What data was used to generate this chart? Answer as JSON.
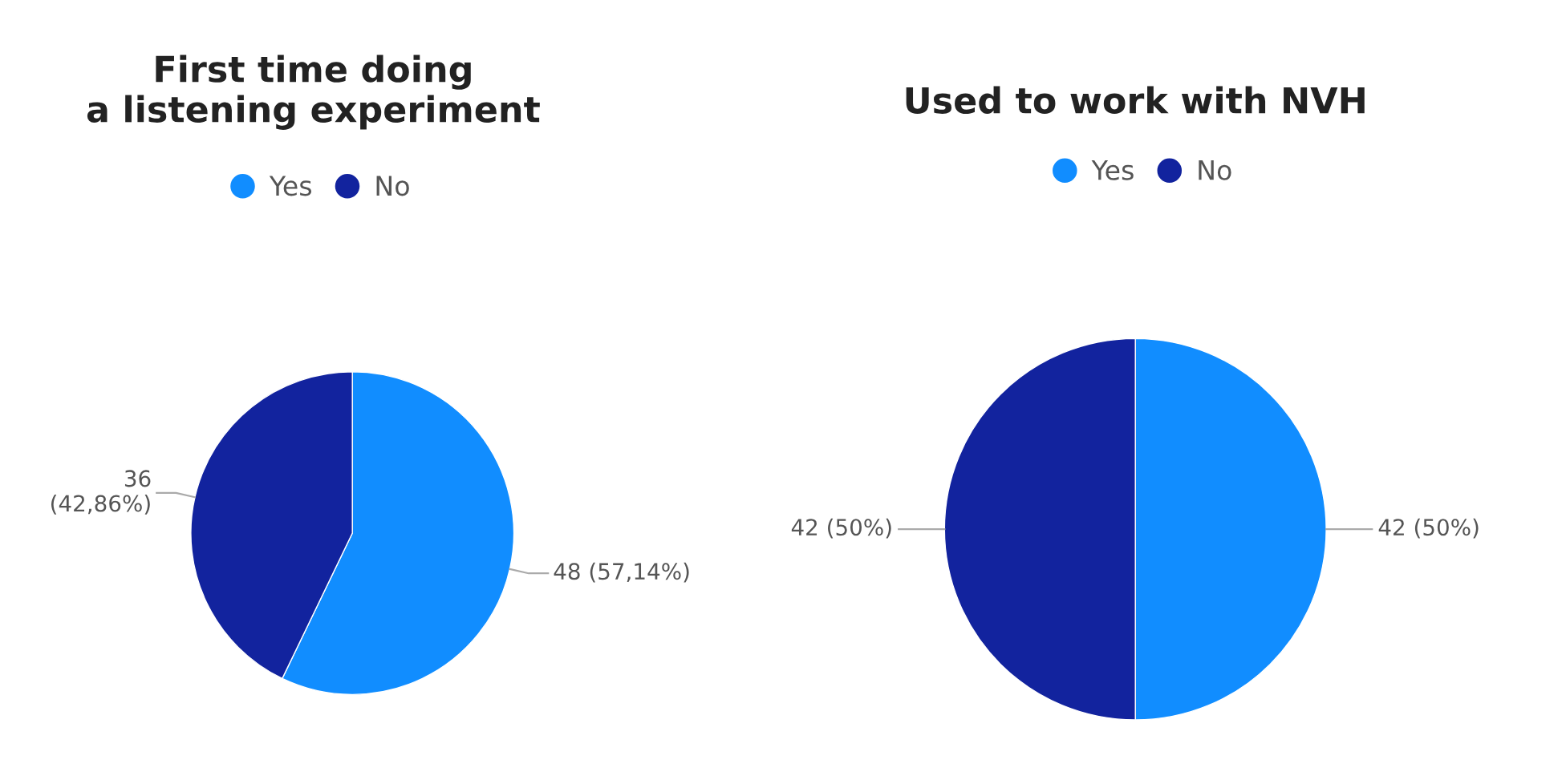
{
  "chart_data": [
    {
      "type": "pie",
      "title": "First time doing\na listening experiment",
      "categories": [
        "Yes",
        "No"
      ],
      "values": [
        48,
        36
      ],
      "colors": [
        "#118dff",
        "#12239e"
      ],
      "value_labels": [
        "48 (57,14%)",
        "36\n(42,86%)"
      ],
      "legend": "top"
    },
    {
      "type": "pie",
      "title": "Used to work with NVH",
      "categories": [
        "Yes",
        "No"
      ],
      "values": [
        42,
        42
      ],
      "colors": [
        "#118dff",
        "#12239e"
      ],
      "value_labels": [
        "42 (50%)",
        "42 (50%)"
      ],
      "legend": "top"
    }
  ]
}
